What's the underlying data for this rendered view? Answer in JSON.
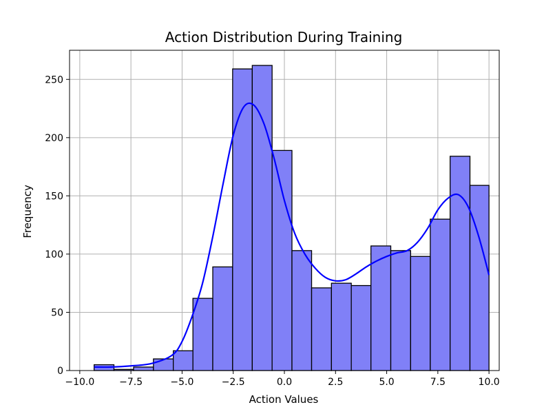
{
  "chart_data": {
    "type": "bar",
    "title": "Action Distribution During Training",
    "xlabel": "Action Values",
    "ylabel": "Frequency",
    "xlim": [
      -10.5,
      10.5
    ],
    "ylim": [
      0,
      275
    ],
    "grid": true,
    "x_ticks": [
      -10.0,
      -7.5,
      -5.0,
      -2.5,
      0.0,
      2.5,
      5.0,
      7.5,
      10.0
    ],
    "x_tick_labels": [
      "−10.0",
      "−7.5",
      "−5.0",
      "−2.5",
      "0.0",
      "2.5",
      "5.0",
      "7.5",
      "10.0"
    ],
    "y_ticks": [
      0,
      50,
      100,
      150,
      200,
      250
    ],
    "y_tick_labels": [
      "0",
      "50",
      "100",
      "150",
      "200",
      "250"
    ],
    "bin_edges": [
      -9.3,
      -8.33,
      -7.37,
      -6.4,
      -5.43,
      -4.47,
      -3.5,
      -2.53,
      -1.57,
      -0.6,
      0.37,
      1.33,
      2.3,
      3.27,
      4.23,
      5.2,
      6.17,
      7.13,
      8.1,
      9.07,
      10.0
    ],
    "values": [
      5,
      1,
      3,
      10,
      17,
      62,
      89,
      259,
      262,
      189,
      103,
      71,
      75,
      73,
      107,
      103,
      98,
      130,
      184,
      159
    ],
    "bar_color": "#8080f7",
    "kde": {
      "color": "#0000ff",
      "x": [
        -9.3,
        -8.5,
        -7.5,
        -6.5,
        -5.5,
        -5.0,
        -4.5,
        -4.0,
        -3.5,
        -3.0,
        -2.5,
        -2.0,
        -1.5,
        -1.0,
        -0.5,
        0.0,
        0.5,
        1.0,
        1.5,
        2.0,
        2.5,
        3.0,
        3.5,
        4.0,
        4.5,
        5.0,
        5.5,
        6.0,
        6.5,
        7.0,
        7.5,
        8.0,
        8.5,
        9.0,
        9.5,
        10.0
      ],
      "y": [
        3,
        3,
        4,
        6,
        13,
        25,
        47,
        75,
        115,
        160,
        202,
        226,
        228,
        212,
        182,
        146,
        118,
        100,
        88,
        80,
        77,
        78,
        83,
        89,
        94,
        98,
        101,
        103,
        110,
        122,
        138,
        148,
        151,
        140,
        115,
        82
      ]
    }
  }
}
